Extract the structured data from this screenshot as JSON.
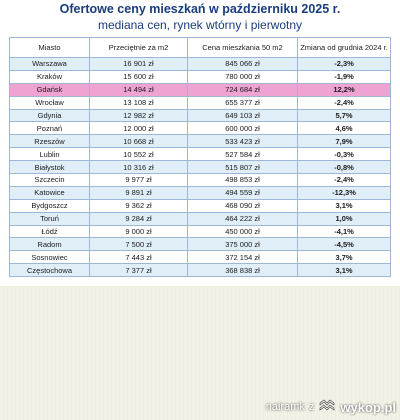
{
  "header": {
    "title": "Ofertowe ceny mieszkań w październiku 2025 r.",
    "subtitle_line1": "mediana cen, rynek wtórny i pierwotny"
  },
  "table": {
    "columns": [
      "Miasto",
      "Przeciętnie za m2",
      "Cena mieszkania 50 m2",
      "Zmiana od grudnia 2024 r."
    ],
    "rows": [
      [
        "Warszawa",
        "16 901 zł",
        "845 066 zł",
        "-2,3%"
      ],
      [
        "Kraków",
        "15 600 zł",
        "780 000 zł",
        "-1,9%"
      ],
      [
        "Gdańsk",
        "14 494 zł",
        "724 684 zł",
        "12,2%"
      ],
      [
        "Wrocław",
        "13 108 zł",
        "655 377 zł",
        "-2,4%"
      ],
      [
        "Gdynia",
        "12 982 zł",
        "649 103 zł",
        "5,7%"
      ],
      [
        "Poznań",
        "12 000 zł",
        "600 000 zł",
        "4,6%"
      ],
      [
        "Rzeszów",
        "10 668 zł",
        "533 423 zł",
        "7,9%"
      ],
      [
        "Lublin",
        "10 552 zł",
        "527 584 zł",
        "-0,3%"
      ],
      [
        "Białystok",
        "10 316 zł",
        "515 807 zł",
        "-0,8%"
      ],
      [
        "Szczecin",
        "9 977 zł",
        "498 853 zł",
        "-2,4%"
      ],
      [
        "Katowice",
        "9 891 zł",
        "494 559 zł",
        "-12,3%"
      ],
      [
        "Bydgoszcz",
        "9 362 zł",
        "468 090 zł",
        "3,1%"
      ],
      [
        "Toruń",
        "9 284 zł",
        "464 222 zł",
        "1,0%"
      ],
      [
        "Łódź",
        "9 000 zł",
        "450 000 zł",
        "-4,1%"
      ],
      [
        "Radom",
        "7 500 zł",
        "375 000 zł",
        "-4,5%"
      ],
      [
        "Sosnowiec",
        "7 443 zł",
        "372 154 zł",
        "3,7%"
      ],
      [
        "Częstochowa",
        "7 377 zł",
        "368 838 zł",
        "3,1%"
      ]
    ],
    "highlighted_row": "Gdańsk"
  },
  "watermark": {
    "user": "nairamk",
    "separator": "z",
    "site": "wykop.pl"
  },
  "colors": {
    "title": "#1a3d7c",
    "row_stripe": "#e0eef8",
    "row_highlight": "#eea3d3",
    "border": "#9fb7d6",
    "wykop_icon": "#ffffff"
  },
  "icons": {
    "watermark_logo": "wykop-logo-icon"
  }
}
